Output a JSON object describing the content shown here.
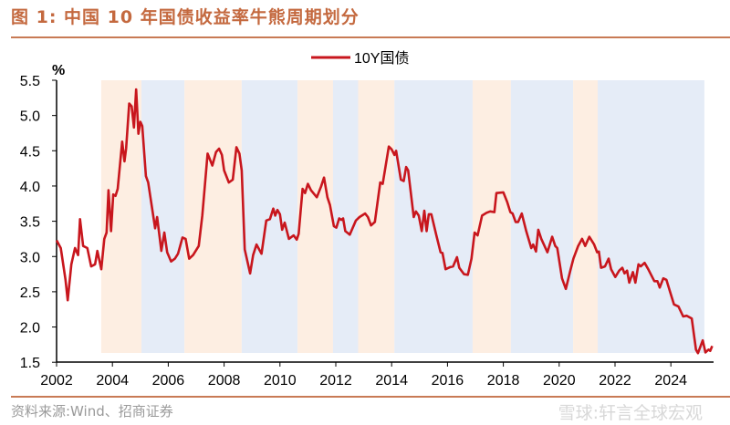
{
  "title": "图 1:  中国 10 年国债收益率牛熊周期划分",
  "source": "资料来源:Wind、招商证券",
  "watermark": "雪球:轩言全球宏观",
  "colors": {
    "line": "#c8161d",
    "bull_band": "#fdeee2",
    "bear_band": "#e5ecf7",
    "title": "#c4693f"
  },
  "chart_data": {
    "type": "line",
    "title": "",
    "ylabel": "%",
    "xlabel": "",
    "ylim": [
      1.5,
      5.5
    ],
    "xlim": [
      2002,
      2025.5
    ],
    "yticks": [
      "5.5",
      "5.0",
      "4.5",
      "4.0",
      "3.5",
      "3.0",
      "2.5",
      "2.0",
      "1.5"
    ],
    "ytick_values": [
      5.5,
      5.0,
      4.5,
      4.0,
      3.5,
      3.0,
      2.5,
      2.0,
      1.5
    ],
    "xticks": [
      "2002",
      "2004",
      "2006",
      "2008",
      "2010",
      "2012",
      "2014",
      "2016",
      "2018",
      "2020",
      "2022",
      "2024"
    ],
    "xtick_values": [
      2002,
      2004,
      2006,
      2008,
      2010,
      2012,
      2014,
      2016,
      2018,
      2020,
      2022,
      2024
    ],
    "legend": {
      "position": "top-center",
      "entries": [
        "10Y国债"
      ]
    },
    "bands": [
      {
        "type": "bull",
        "from": 2003.6,
        "to": 2005.04
      },
      {
        "type": "bear",
        "from": 2005.04,
        "to": 2006.58
      },
      {
        "type": "bull",
        "from": 2006.58,
        "to": 2008.63
      },
      {
        "type": "bear",
        "from": 2008.63,
        "to": 2010.63
      },
      {
        "type": "bull",
        "from": 2010.63,
        "to": 2011.9
      },
      {
        "type": "bear",
        "from": 2011.9,
        "to": 2012.8
      },
      {
        "type": "bull",
        "from": 2012.8,
        "to": 2014.1
      },
      {
        "type": "bear",
        "from": 2014.1,
        "to": 2016.9
      },
      {
        "type": "bull",
        "from": 2016.9,
        "to": 2018.27
      },
      {
        "type": "bear",
        "from": 2018.27,
        "to": 2020.5
      },
      {
        "type": "bull",
        "from": 2020.5,
        "to": 2021.38
      },
      {
        "type": "bear",
        "from": 2021.38,
        "to": 2025.2
      }
    ],
    "series": [
      {
        "name": "10Y国债",
        "points": [
          [
            2002.0,
            3.23
          ],
          [
            2002.15,
            3.12
          ],
          [
            2002.32,
            2.67
          ],
          [
            2002.4,
            2.38
          ],
          [
            2002.53,
            2.89
          ],
          [
            2002.66,
            3.12
          ],
          [
            2002.77,
            3.02
          ],
          [
            2002.84,
            3.53
          ],
          [
            2002.95,
            3.15
          ],
          [
            2003.1,
            3.12
          ],
          [
            2003.24,
            2.86
          ],
          [
            2003.38,
            2.89
          ],
          [
            2003.46,
            3.08
          ],
          [
            2003.6,
            2.82
          ],
          [
            2003.71,
            3.25
          ],
          [
            2003.79,
            3.34
          ],
          [
            2003.86,
            3.94
          ],
          [
            2003.95,
            3.36
          ],
          [
            2004.03,
            3.88
          ],
          [
            2004.11,
            3.86
          ],
          [
            2004.19,
            3.96
          ],
          [
            2004.35,
            4.63
          ],
          [
            2004.43,
            4.35
          ],
          [
            2004.49,
            4.53
          ],
          [
            2004.6,
            5.17
          ],
          [
            2004.69,
            5.13
          ],
          [
            2004.77,
            4.83
          ],
          [
            2004.85,
            5.37
          ],
          [
            2004.93,
            4.74
          ],
          [
            2005.0,
            4.91
          ],
          [
            2005.07,
            4.85
          ],
          [
            2005.2,
            4.14
          ],
          [
            2005.28,
            4.05
          ],
          [
            2005.53,
            3.4
          ],
          [
            2005.6,
            3.56
          ],
          [
            2005.75,
            3.08
          ],
          [
            2005.86,
            3.34
          ],
          [
            2005.96,
            3.06
          ],
          [
            2006.1,
            2.93
          ],
          [
            2006.24,
            2.97
          ],
          [
            2006.35,
            3.04
          ],
          [
            2006.51,
            3.27
          ],
          [
            2006.62,
            3.25
          ],
          [
            2006.75,
            2.97
          ],
          [
            2006.89,
            3.02
          ],
          [
            2007.09,
            3.15
          ],
          [
            2007.22,
            3.58
          ],
          [
            2007.41,
            4.46
          ],
          [
            2007.58,
            4.29
          ],
          [
            2007.71,
            4.48
          ],
          [
            2007.82,
            4.53
          ],
          [
            2007.92,
            4.44
          ],
          [
            2008.0,
            4.22
          ],
          [
            2008.17,
            4.05
          ],
          [
            2008.31,
            4.09
          ],
          [
            2008.44,
            4.55
          ],
          [
            2008.55,
            4.46
          ],
          [
            2008.63,
            4.22
          ],
          [
            2008.74,
            3.1
          ],
          [
            2008.93,
            2.76
          ],
          [
            2009.04,
            3.02
          ],
          [
            2009.16,
            3.17
          ],
          [
            2009.34,
            3.04
          ],
          [
            2009.51,
            3.51
          ],
          [
            2009.64,
            3.53
          ],
          [
            2009.76,
            3.68
          ],
          [
            2009.83,
            3.58
          ],
          [
            2009.91,
            3.66
          ],
          [
            2010.0,
            3.6
          ],
          [
            2010.08,
            3.38
          ],
          [
            2010.17,
            3.48
          ],
          [
            2010.32,
            3.25
          ],
          [
            2010.49,
            3.3
          ],
          [
            2010.6,
            3.24
          ],
          [
            2010.67,
            3.32
          ],
          [
            2010.81,
            3.96
          ],
          [
            2010.9,
            3.9
          ],
          [
            2011.0,
            4.03
          ],
          [
            2011.11,
            3.94
          ],
          [
            2011.32,
            3.84
          ],
          [
            2011.47,
            3.99
          ],
          [
            2011.58,
            4.12
          ],
          [
            2011.7,
            3.84
          ],
          [
            2011.79,
            3.73
          ],
          [
            2011.93,
            3.43
          ],
          [
            2012.02,
            3.41
          ],
          [
            2012.12,
            3.54
          ],
          [
            2012.2,
            3.52
          ],
          [
            2012.26,
            3.54
          ],
          [
            2012.34,
            3.36
          ],
          [
            2012.5,
            3.31
          ],
          [
            2012.72,
            3.51
          ],
          [
            2012.85,
            3.56
          ],
          [
            2013.05,
            3.61
          ],
          [
            2013.15,
            3.56
          ],
          [
            2013.26,
            3.44
          ],
          [
            2013.4,
            3.49
          ],
          [
            2013.59,
            4.05
          ],
          [
            2013.68,
            4.03
          ],
          [
            2013.9,
            4.56
          ],
          [
            2014.0,
            4.52
          ],
          [
            2014.1,
            4.44
          ],
          [
            2014.16,
            4.5
          ],
          [
            2014.33,
            4.09
          ],
          [
            2014.43,
            4.07
          ],
          [
            2014.52,
            4.27
          ],
          [
            2014.59,
            4.22
          ],
          [
            2014.79,
            3.56
          ],
          [
            2014.87,
            3.64
          ],
          [
            2014.97,
            3.58
          ],
          [
            2015.08,
            3.36
          ],
          [
            2015.17,
            3.65
          ],
          [
            2015.25,
            3.36
          ],
          [
            2015.33,
            3.6
          ],
          [
            2015.42,
            3.6
          ],
          [
            2015.6,
            3.3
          ],
          [
            2015.75,
            3.06
          ],
          [
            2015.82,
            3.05
          ],
          [
            2015.93,
            2.82
          ],
          [
            2016.1,
            2.85
          ],
          [
            2016.2,
            2.86
          ],
          [
            2016.34,
            2.99
          ],
          [
            2016.42,
            2.84
          ],
          [
            2016.59,
            2.75
          ],
          [
            2016.73,
            2.74
          ],
          [
            2016.86,
            2.97
          ],
          [
            2016.97,
            3.34
          ],
          [
            2017.08,
            3.3
          ],
          [
            2017.24,
            3.58
          ],
          [
            2017.4,
            3.62
          ],
          [
            2017.53,
            3.64
          ],
          [
            2017.68,
            3.63
          ],
          [
            2017.75,
            3.9
          ],
          [
            2018.0,
            3.91
          ],
          [
            2018.14,
            3.77
          ],
          [
            2018.25,
            3.63
          ],
          [
            2018.33,
            3.61
          ],
          [
            2018.44,
            3.49
          ],
          [
            2018.53,
            3.49
          ],
          [
            2018.66,
            3.61
          ],
          [
            2018.82,
            3.36
          ],
          [
            2019.0,
            3.12
          ],
          [
            2019.07,
            3.17
          ],
          [
            2019.17,
            3.07
          ],
          [
            2019.25,
            3.38
          ],
          [
            2019.36,
            3.25
          ],
          [
            2019.58,
            3.06
          ],
          [
            2019.75,
            3.28
          ],
          [
            2019.86,
            3.15
          ],
          [
            2019.93,
            3.12
          ],
          [
            2020.1,
            2.69
          ],
          [
            2020.24,
            2.54
          ],
          [
            2020.4,
            2.8
          ],
          [
            2020.51,
            2.97
          ],
          [
            2020.68,
            3.15
          ],
          [
            2020.82,
            3.25
          ],
          [
            2020.93,
            3.15
          ],
          [
            2021.08,
            3.28
          ],
          [
            2021.25,
            3.17
          ],
          [
            2021.36,
            3.06
          ],
          [
            2021.42,
            3.07
          ],
          [
            2021.5,
            2.84
          ],
          [
            2021.64,
            2.86
          ],
          [
            2021.77,
            2.97
          ],
          [
            2021.86,
            2.82
          ],
          [
            2022.01,
            2.71
          ],
          [
            2022.15,
            2.8
          ],
          [
            2022.26,
            2.84
          ],
          [
            2022.34,
            2.76
          ],
          [
            2022.43,
            2.8
          ],
          [
            2022.51,
            2.63
          ],
          [
            2022.64,
            2.78
          ],
          [
            2022.73,
            2.63
          ],
          [
            2022.84,
            2.89
          ],
          [
            2022.92,
            2.86
          ],
          [
            2023.06,
            2.91
          ],
          [
            2023.19,
            2.82
          ],
          [
            2023.41,
            2.65
          ],
          [
            2023.52,
            2.65
          ],
          [
            2023.6,
            2.56
          ],
          [
            2023.73,
            2.69
          ],
          [
            2023.84,
            2.67
          ],
          [
            2023.97,
            2.5
          ],
          [
            2024.11,
            2.32
          ],
          [
            2024.27,
            2.29
          ],
          [
            2024.44,
            2.15
          ],
          [
            2024.57,
            2.16
          ],
          [
            2024.75,
            2.12
          ],
          [
            2024.9,
            1.68
          ],
          [
            2024.97,
            1.63
          ],
          [
            2025.14,
            1.81
          ],
          [
            2025.24,
            1.64
          ],
          [
            2025.35,
            1.68
          ],
          [
            2025.41,
            1.66
          ],
          [
            2025.48,
            1.73
          ]
        ]
      }
    ]
  }
}
